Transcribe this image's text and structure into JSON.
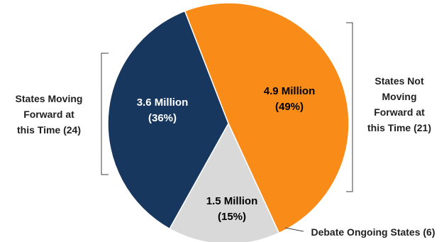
{
  "chart_data": {
    "type": "pie",
    "slices": [
      {
        "value_label": "4.9 Million",
        "percent_label": "(49%)",
        "percent": 49,
        "value_millions": 4.9,
        "color": "#F98B18",
        "text_color": "#1f1f1f"
      },
      {
        "value_label": "1.5 Million",
        "percent_label": "(15%)",
        "percent": 15,
        "value_millions": 1.5,
        "color": "#D9D9D9",
        "text_color": "#1f1f1f"
      },
      {
        "value_label": "3.6 Million",
        "percent_label": "(36%)",
        "percent": 36,
        "value_millions": 3.6,
        "color": "#17375E",
        "text_color": "#ffffff"
      }
    ],
    "group_labels": {
      "moving": {
        "lines": [
          "States Moving",
          "Forward at",
          "this Time (24)"
        ]
      },
      "not_moving": {
        "lines": [
          "States Not",
          "Moving",
          "Forward at",
          "this Time (21)"
        ]
      },
      "ongoing": {
        "text": "Debate Ongoing States (6)"
      }
    }
  }
}
